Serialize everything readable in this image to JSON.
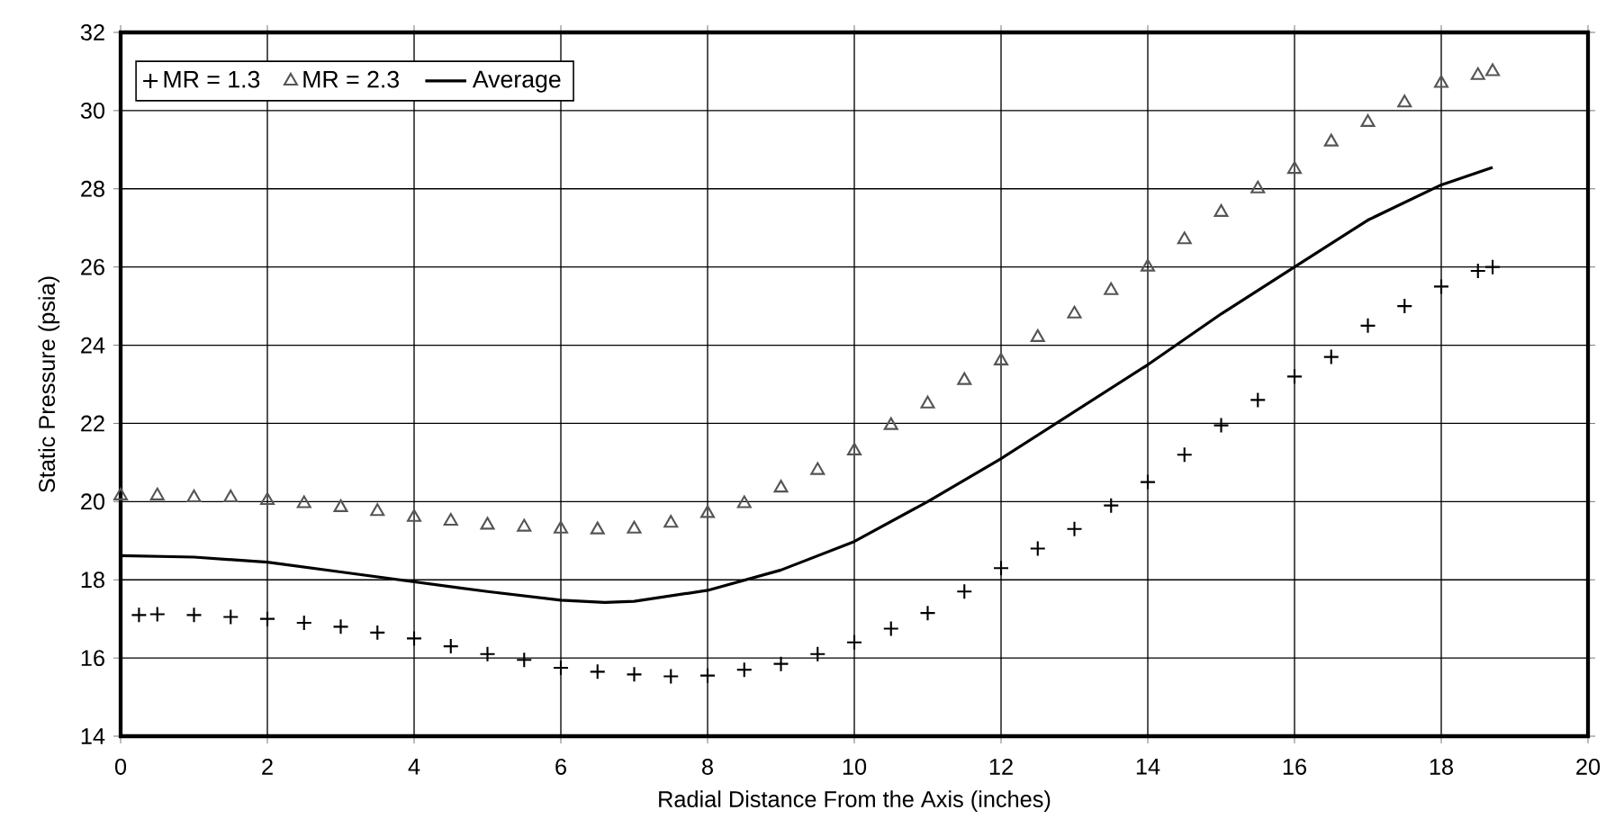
{
  "chart_data": {
    "type": "scatter",
    "xlabel": "Radial Distance From the Axis (inches)",
    "ylabel": "Static Pressure (psia)",
    "xlim": [
      0,
      20
    ],
    "ylim": [
      14,
      32
    ],
    "xticks": [
      0,
      2,
      4,
      6,
      8,
      10,
      12,
      14,
      16,
      18,
      20
    ],
    "yticks": [
      14,
      16,
      18,
      20,
      22,
      24,
      26,
      28,
      30,
      32
    ],
    "grid": true,
    "legend": "top left",
    "series": [
      {
        "name": "MR = 1.3",
        "marker": "cross",
        "color": "#000000",
        "x": [
          0.25,
          0.5,
          1,
          1.5,
          2,
          2.5,
          3,
          3.5,
          4,
          4.5,
          5,
          5.5,
          6,
          6.5,
          7,
          7.5,
          8,
          8.5,
          9,
          9.5,
          10,
          10.5,
          11,
          11.5,
          12,
          12.5,
          13,
          13.5,
          14,
          14.5,
          15,
          15.5,
          16,
          16.5,
          17,
          17.5,
          18,
          18.5,
          18.7
        ],
        "values": [
          17.1,
          17.12,
          17.1,
          17.05,
          17.0,
          16.9,
          16.8,
          16.65,
          16.5,
          16.3,
          16.1,
          15.95,
          15.75,
          15.65,
          15.58,
          15.53,
          15.55,
          15.7,
          15.85,
          16.1,
          16.4,
          16.75,
          17.15,
          17.7,
          18.3,
          18.8,
          19.3,
          19.9,
          20.5,
          21.2,
          21.95,
          22.6,
          23.2,
          23.7,
          24.5,
          25.0,
          25.5,
          25.9,
          26.0
        ]
      },
      {
        "name": "MR = 2.3",
        "marker": "triangle",
        "color": "#555555",
        "x": [
          0,
          0.5,
          1,
          1.5,
          2,
          2.5,
          3,
          3.5,
          4,
          4.5,
          5,
          5.5,
          6,
          6.5,
          7,
          7.5,
          8,
          8.5,
          9,
          9.5,
          10,
          10.5,
          11,
          11.5,
          12,
          12.5,
          13,
          13.5,
          14,
          14.5,
          15,
          15.5,
          16,
          16.5,
          17,
          17.5,
          18,
          18.5,
          18.7
        ],
        "values": [
          20.15,
          20.15,
          20.1,
          20.1,
          20.03,
          19.95,
          19.85,
          19.75,
          19.6,
          19.5,
          19.4,
          19.35,
          19.3,
          19.28,
          19.3,
          19.45,
          19.7,
          19.95,
          20.35,
          20.8,
          21.3,
          21.95,
          22.5,
          23.1,
          23.6,
          24.2,
          24.8,
          25.4,
          26.0,
          26.7,
          27.4,
          28.0,
          28.5,
          29.2,
          29.7,
          30.2,
          30.7,
          30.9,
          31.0
        ]
      },
      {
        "name": "Average",
        "type": "line",
        "marker": "none",
        "line_style": "solid",
        "color": "#000000",
        "x": [
          0,
          1,
          2,
          3,
          4,
          5,
          6,
          6.6,
          7,
          8,
          9,
          10,
          11,
          12,
          13,
          14,
          15,
          16,
          17,
          18,
          18.7
        ],
        "values": [
          18.62,
          18.58,
          18.45,
          18.2,
          17.95,
          17.7,
          17.48,
          17.42,
          17.45,
          17.73,
          18.25,
          18.98,
          20.0,
          21.1,
          22.3,
          23.5,
          24.8,
          26.0,
          27.2,
          28.1,
          28.55
        ]
      }
    ]
  }
}
